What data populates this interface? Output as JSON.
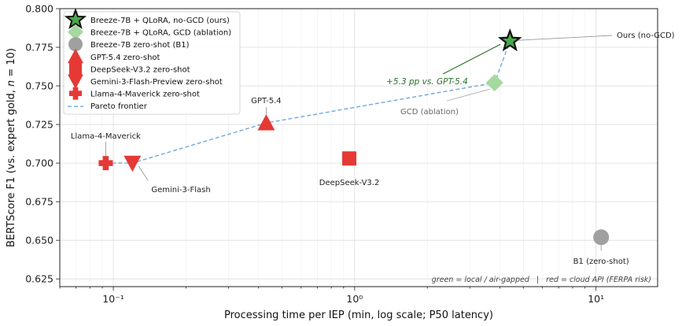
{
  "chart_data": {
    "type": "scatter",
    "xlabel": "Processing time per IEP (min, log scale; P50 latency)",
    "ylabel": "BERTScore F1 (vs. expert gold, n = 10)",
    "xscale": "log",
    "xlim": [
      0.06,
      18
    ],
    "ylim": [
      0.62,
      0.8
    ],
    "grid": true,
    "legend_placement": "top-left",
    "x_ticks": [
      {
        "value": 0.1,
        "label": "10⁻¹"
      },
      {
        "value": 1,
        "label": "10⁰"
      },
      {
        "value": 10,
        "label": "10¹"
      }
    ],
    "y_ticks": [
      {
        "value": 0.625,
        "label": "0.625"
      },
      {
        "value": 0.65,
        "label": "0.650"
      },
      {
        "value": 0.675,
        "label": "0.675"
      },
      {
        "value": 0.7,
        "label": "0.700"
      },
      {
        "value": 0.725,
        "label": "0.725"
      },
      {
        "value": 0.75,
        "label": "0.750"
      },
      {
        "value": 0.775,
        "label": "0.775"
      },
      {
        "value": 0.8,
        "label": "0.800"
      }
    ],
    "series": [
      {
        "name": "Breeze-7B + QLoRA, no-GCD (ours)",
        "marker": "star",
        "color": "#4aa84a",
        "edge": "#111111",
        "x": 4.4,
        "y": 0.779
      },
      {
        "name": "Breeze-7B + QLoRA, GCD (ablation)",
        "marker": "diamond",
        "color": "#a6d9a0",
        "edge": "#a6d9a0",
        "x": 3.8,
        "y": 0.752
      },
      {
        "name": "Breeze-7B zero-shot (B1)",
        "marker": "circle",
        "color": "#a0a0a0",
        "edge": "#a0a0a0",
        "x": 10.5,
        "y": 0.652
      },
      {
        "name": "GPT-5.4 zero-shot",
        "marker": "triangle-up",
        "color": "#e53935",
        "edge": "#e53935",
        "x": 0.43,
        "y": 0.726
      },
      {
        "name": "DeepSeek-V3.2 zero-shot",
        "marker": "square",
        "color": "#e53935",
        "edge": "#e53935",
        "x": 0.95,
        "y": 0.703
      },
      {
        "name": "Gemini-3-Flash-Preview zero-shot",
        "marker": "triangle-down",
        "color": "#e53935",
        "edge": "#e53935",
        "x": 0.12,
        "y": 0.7
      },
      {
        "name": "Llama-4-Maverick zero-shot",
        "marker": "plus",
        "color": "#e53935",
        "edge": "#e53935",
        "x": 0.093,
        "y": 0.7
      }
    ],
    "pareto_frontier": {
      "name": "Pareto frontier",
      "color": "#6fa8dc",
      "style": "dashed",
      "x": [
        0.093,
        0.12,
        0.43,
        3.8,
        4.4
      ],
      "y": [
        0.7,
        0.7,
        0.726,
        0.752,
        0.779
      ]
    },
    "annotations": [
      {
        "text": "Ours (no-GCD)"
      },
      {
        "text": "GCD (ablation)"
      },
      {
        "text": "GPT-5.4"
      },
      {
        "text": "Llama-4-Maverick"
      },
      {
        "text": "Gemini-3-Flash"
      },
      {
        "text": "DeepSeek-V3.2"
      },
      {
        "text": "B1 (zero-shot)"
      },
      {
        "text": "+5.3 pp vs. GPT-5.4"
      }
    ],
    "footnote": "green = local / air-gapped   |   red = cloud API (FERPA risk)"
  }
}
